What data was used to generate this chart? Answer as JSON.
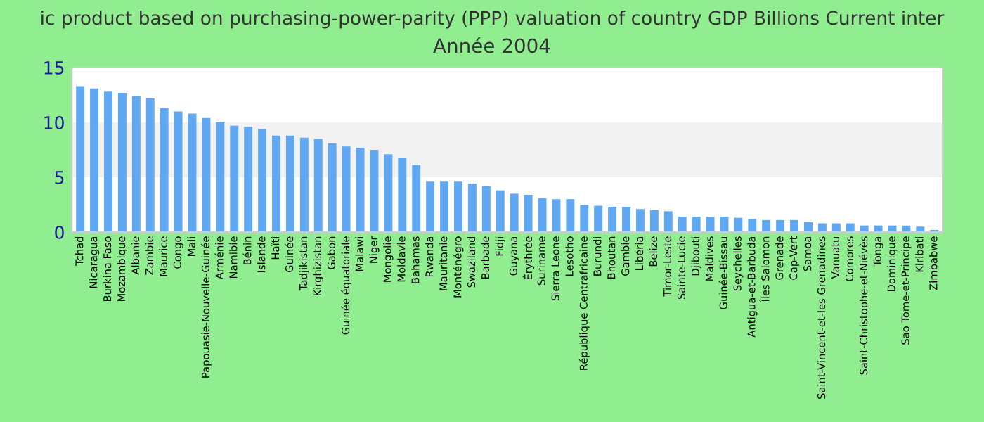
{
  "chart_data": {
    "type": "bar",
    "title": "ic product based on purchasing-power-parity (PPP) valuation of country GDP Billions Current inter",
    "subtitle": "Année 2004",
    "categories": [
      "Tchad",
      "Nicaragua",
      "Burkina Faso",
      "Mozambique",
      "Albanie",
      "Zambie",
      "Maurice",
      "Congo",
      "Mali",
      "Papouasie-Nouvelle-Guinée",
      "Arménie",
      "Namibie",
      "Bénin",
      "Islande",
      "Haïti",
      "Guinée",
      "Tadjikistan",
      "Kirghizistan",
      "Gabon",
      "Guinée équatoriale",
      "Malawi",
      "Niger",
      "Mongolie",
      "Moldavie",
      "Bahamas",
      "Rwanda",
      "Mauritanie",
      "Monténégro",
      "Swaziland",
      "Barbade",
      "Fidji",
      "Guyana",
      "Érythrée",
      "Suriname",
      "Sierra Leone",
      "Lesotho",
      "République Centrafricaine",
      "Burundi",
      "Bhoutan",
      "Gambie",
      "Libéria",
      "Belize",
      "Timor-Leste",
      "Sainte-Lucie",
      "Djibouti",
      "Maldives",
      "Guinée-Bissau",
      "Seychelles",
      "Antigua-et-Barbuda",
      "Îles Salomon",
      "Grenade",
      "Cap-Vert",
      "Samoa",
      "Saint-Vincent-et-les Grenadines",
      "Vanuatu",
      "Comores",
      "Saint-Christophe-et-Niévès",
      "Tonga",
      "Dominique",
      "Sao Tome-et-Principe",
      "Kiribati",
      "Zimbabwe"
    ],
    "values": [
      13.3,
      13.1,
      12.8,
      12.7,
      12.4,
      12.2,
      11.3,
      11,
      10.8,
      10.4,
      10,
      9.7,
      9.6,
      9.4,
      8.8,
      8.8,
      8.6,
      8.5,
      8.1,
      7.8,
      7.7,
      7.5,
      7.1,
      6.8,
      6.1,
      4.6,
      4.6,
      4.6,
      4.4,
      4.2,
      3.8,
      3.5,
      3.4,
      3.1,
      3,
      3,
      2.5,
      2.4,
      2.3,
      2.3,
      2.1,
      2,
      1.9,
      1.4,
      1.4,
      1.4,
      1.4,
      1.3,
      1.2,
      1.1,
      1.1,
      1.1,
      0.9,
      0.8,
      0.8,
      0.8,
      0.6,
      0.6,
      0.6,
      0.6,
      0.5,
      0.2
    ],
    "color": "#60a9f2",
    "ylim": [
      0,
      15
    ],
    "yticks": [
      0,
      5,
      10,
      15
    ],
    "bands": [
      {
        "axis": "y",
        "from": 5,
        "to": 10,
        "color": "#f2f2f2"
      }
    ]
  }
}
